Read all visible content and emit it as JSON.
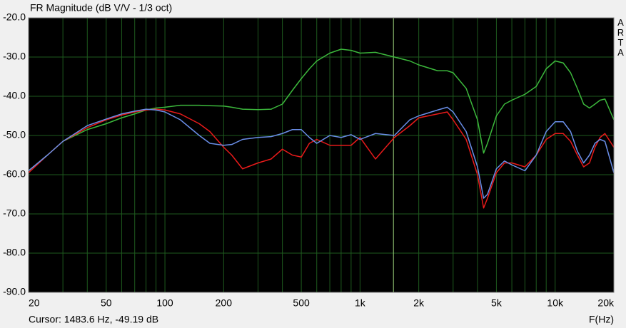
{
  "chart_data": {
    "type": "line",
    "title": "FR Magnitude (dB V/V - 1/3 oct)",
    "watermark": "ARTA",
    "x_label": "F(Hz)",
    "cursor": {
      "label": "Cursor: 1483.6 Hz, -49.19 dB",
      "x": 1483.6,
      "color": "#9ad07a"
    },
    "x_log": true,
    "grid": true,
    "background": "#000000",
    "grid_color": "#1e5a1e",
    "xlim": [
      20,
      20000
    ],
    "ylim": [
      -90,
      -20
    ],
    "xticks": [
      20,
      50,
      100,
      200,
      500,
      {
        "value": 1000,
        "label": "1k"
      },
      {
        "value": 2000,
        "label": "2k"
      },
      {
        "value": 5000,
        "label": "5k"
      },
      {
        "value": 10000,
        "label": "10k"
      },
      {
        "value": 20000,
        "label": "20k"
      }
    ],
    "xgrid": [
      30,
      40,
      60,
      70,
      80,
      90,
      300,
      400,
      600,
      700,
      800,
      900,
      3000,
      4000,
      6000,
      7000,
      8000,
      9000
    ],
    "yticks": [
      {
        "value": -20,
        "label": "-20.0"
      },
      {
        "value": -30,
        "label": "-30.0"
      },
      {
        "value": -40,
        "label": "-40.0"
      },
      {
        "value": -50,
        "label": "-50.0"
      },
      {
        "value": -60,
        "label": "-60.0"
      },
      {
        "value": -70,
        "label": "-70.0"
      },
      {
        "value": -80,
        "label": "-80.0"
      },
      {
        "value": -90,
        "label": "-90.0"
      }
    ],
    "x": [
      20,
      25,
      30,
      40,
      50,
      60,
      70,
      80,
      90,
      100,
      120,
      150,
      170,
      200,
      220,
      250,
      300,
      350,
      400,
      450,
      500,
      550,
      600,
      700,
      800,
      900,
      1000,
      1200,
      1500,
      1800,
      2000,
      2500,
      2800,
      3000,
      3500,
      4000,
      4300,
      4500,
      5000,
      5500,
      6000,
      7000,
      8000,
      9000,
      10000,
      11000,
      12000,
      13000,
      14000,
      15000,
      16000,
      17000,
      18000,
      20000
    ],
    "series": [
      {
        "color": "#3cb83c",
        "values": [
          -59,
          -55,
          -51.5,
          -48.5,
          -47,
          -45.5,
          -44.5,
          -43.5,
          -43,
          -42.8,
          -42.3,
          -42.3,
          -42.4,
          -42.5,
          -42.8,
          -43.3,
          -43.4,
          -43.3,
          -42,
          -38.5,
          -35.5,
          -33,
          -31,
          -29,
          -28,
          -28.3,
          -29,
          -28.8,
          -30,
          -31,
          -32,
          -33.5,
          -33.5,
          -34,
          -38,
          -46,
          -54.5,
          -52,
          -45,
          -42,
          -41,
          -39.5,
          -37.5,
          -33,
          -31,
          -31.5,
          -34,
          -38,
          -42,
          -43,
          -42,
          -41,
          -40.7,
          -46
        ]
      },
      {
        "color": "#e81a1a",
        "values": [
          -59.5,
          -55,
          -51.5,
          -48,
          -46,
          -44.8,
          -44,
          -43.5,
          -43.3,
          -43.5,
          -44.5,
          -47,
          -49,
          -53,
          -55,
          -58.5,
          -57,
          -56,
          -53.5,
          -55,
          -55.5,
          -52,
          -51,
          -52.5,
          -52.5,
          -52.5,
          -50.5,
          -56,
          -50.5,
          -47.5,
          -45.5,
          -44.5,
          -44,
          -46,
          -51,
          -60,
          -68.5,
          -66,
          -59.5,
          -57,
          -57,
          -58,
          -55,
          -51,
          -49.5,
          -49.5,
          -51.5,
          -55,
          -58,
          -57,
          -53,
          -50.5,
          -49.5,
          -53
        ]
      },
      {
        "color": "#6a8ee8",
        "values": [
          -59,
          -55,
          -51.5,
          -47.5,
          -45.8,
          -44.5,
          -43.8,
          -43.3,
          -43.5,
          -44,
          -46,
          -50,
          -52,
          -52.5,
          -52.3,
          -51,
          -50.5,
          -50.3,
          -49.5,
          -48.5,
          -48.5,
          -50.5,
          -52,
          -50,
          -50.5,
          -49.8,
          -51,
          -49.5,
          -50,
          -46,
          -45,
          -43.5,
          -42.8,
          -44,
          -49,
          -58,
          -66,
          -65,
          -58.5,
          -56.5,
          -57.5,
          -59,
          -55,
          -49,
          -46.5,
          -46.5,
          -49,
          -54,
          -57,
          -55,
          -52,
          -51,
          -51.5,
          -59.5
        ]
      }
    ]
  }
}
